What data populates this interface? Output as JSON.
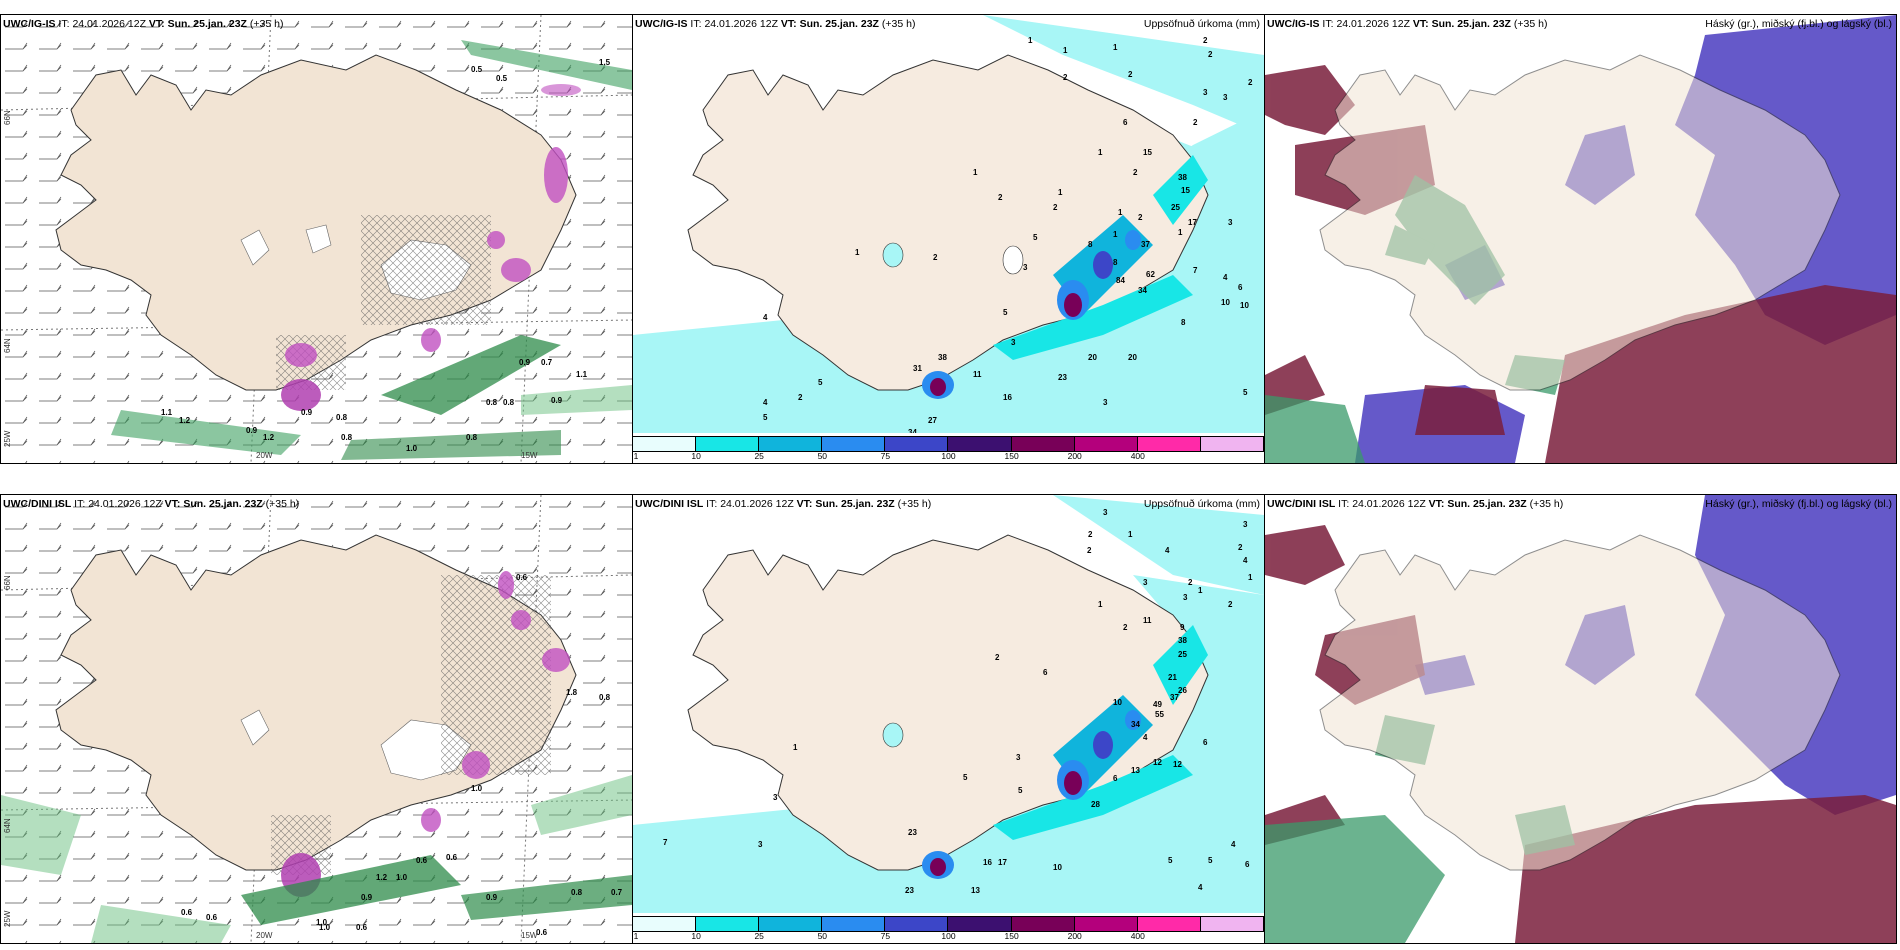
{
  "row1": {
    "panel1": {
      "model": "UWC/IG-IS",
      "it_prefix": "IT:",
      "it_value": "24.01.2026 12Z",
      "vt_prefix": "VT:",
      "vt_value": "Sun. 25.jan. 23Z",
      "lead": "(+35 h)",
      "lat_top": "66N",
      "lat_mid": "64N",
      "lat_bottom": "25W",
      "lon_left": "20W",
      "lon_right": "15W"
    },
    "panel2": {
      "model": "UWC/IG-IS",
      "it_prefix": "IT:",
      "it_value": "24.01.2026 12Z",
      "vt_prefix": "VT:",
      "vt_value": "Sun. 25.jan. 23Z",
      "lead": "(+35 h)",
      "right_title": "Uppsöfnuð úrkoma (mm)"
    },
    "panel3": {
      "model": "UWC/IG-IS",
      "it_prefix": "IT:",
      "it_value": "24.01.2026 12Z",
      "vt_prefix": "VT:",
      "vt_value": "Sun. 25.jan. 23Z",
      "lead": "(+35 h)",
      "right_title": "Háský (gr.), miðský (fj.bl.) og lágský (bl.)"
    }
  },
  "row2": {
    "panel1": {
      "model": "UWC/DINI ISL",
      "it_prefix": "IT:",
      "it_value": "24.01.2026 12Z",
      "vt_prefix": "VT:",
      "vt_value": "Sun. 25.jan. 23Z",
      "lead": "(+35 h)",
      "lat_top": "66N",
      "lat_mid": "64N",
      "lat_bottom": "25W",
      "lon_left": "20W",
      "lon_right": "15W"
    },
    "panel2": {
      "model": "UWC/DINI ISL",
      "it_prefix": "IT:",
      "it_value": "24.01.2026 12Z",
      "vt_prefix": "VT:",
      "vt_value": "Sun. 25.jan. 23Z",
      "lead": "(+35 h)",
      "right_title": "Uppsöfnuð úrkoma (mm)"
    },
    "panel3": {
      "model": "UWC/DINI ISL",
      "it_prefix": "IT:",
      "it_value": "24.01.2026 12Z",
      "vt_prefix": "VT:",
      "vt_value": "Sun. 25.jan. 23Z",
      "lead": "(+35 h)",
      "right_title": "Háský (gr.), miðský (fj.bl.) og lágský (bl.)"
    }
  },
  "legend": {
    "labels": [
      "1",
      "10",
      "25",
      "50",
      "75",
      "100",
      "150",
      "200",
      "400"
    ],
    "colors": [
      "#e8fdfd",
      "#18e6e6",
      "#10b4dc",
      "#2a8cf0",
      "#3c46c8",
      "#3c1070",
      "#780058",
      "#b4007c",
      "#ff2aa8",
      "#f0b4f0"
    ]
  },
  "colors": {
    "land": "#f2e4d4",
    "precip_light": "#a8f6f6",
    "cloud_high": "#4a9a6a",
    "cloud_mid": "#7a1e3c",
    "cloud_low": "#4a3cc0"
  },
  "precip_values_row1": [
    "1",
    "1",
    "1",
    "2",
    "2",
    "2",
    "2",
    "3",
    "3",
    "2",
    "2",
    "1",
    "6",
    "1",
    "2",
    "1",
    "2",
    "2",
    "15",
    "1",
    "2",
    "1",
    "38",
    "15",
    "1",
    "25",
    "17",
    "3",
    "1",
    "5",
    "3",
    "8",
    "2",
    "8",
    "37",
    "62",
    "7",
    "84",
    "34",
    "4",
    "6",
    "10",
    "10",
    "8",
    "5",
    "3",
    "38",
    "11",
    "31",
    "20",
    "20",
    "23",
    "16",
    "4",
    "4",
    "2",
    "5",
    "5",
    "27",
    "34",
    "3",
    "5"
  ],
  "precip_values_row2": [
    "3",
    "2",
    "1",
    "3",
    "4",
    "2",
    "2",
    "2",
    "3",
    "4",
    "2",
    "1",
    "1",
    "11",
    "2",
    "9",
    "2",
    "38",
    "25",
    "6",
    "21",
    "26",
    "10",
    "49",
    "37",
    "55",
    "34",
    "4",
    "6",
    "3",
    "5",
    "6",
    "1",
    "3",
    "12",
    "13",
    "12",
    "5",
    "28",
    "1",
    "3",
    "7",
    "23",
    "16",
    "17",
    "10",
    "23",
    "13",
    "5",
    "4",
    "3",
    "4",
    "5",
    "6"
  ],
  "wind_values_row1": [
    "0.5",
    "0.5",
    "1.5",
    "0.9",
    "0.7",
    "0.8",
    "0.8",
    "0.9",
    "1.1",
    "0.9",
    "0.8",
    "1.2",
    "1.1",
    "1.2",
    "0.9",
    "0.8",
    "1.0",
    "0.8"
  ],
  "wind_values_row2": [
    "0.6",
    "1.8",
    "1.0",
    "0.6",
    "0.6",
    "1.0",
    "0.9",
    "1.2",
    "1.0",
    "0.6",
    "0.6",
    "0.8",
    "0.7",
    "0.6",
    "0.8",
    "0.9",
    "1.0",
    "0.6"
  ]
}
